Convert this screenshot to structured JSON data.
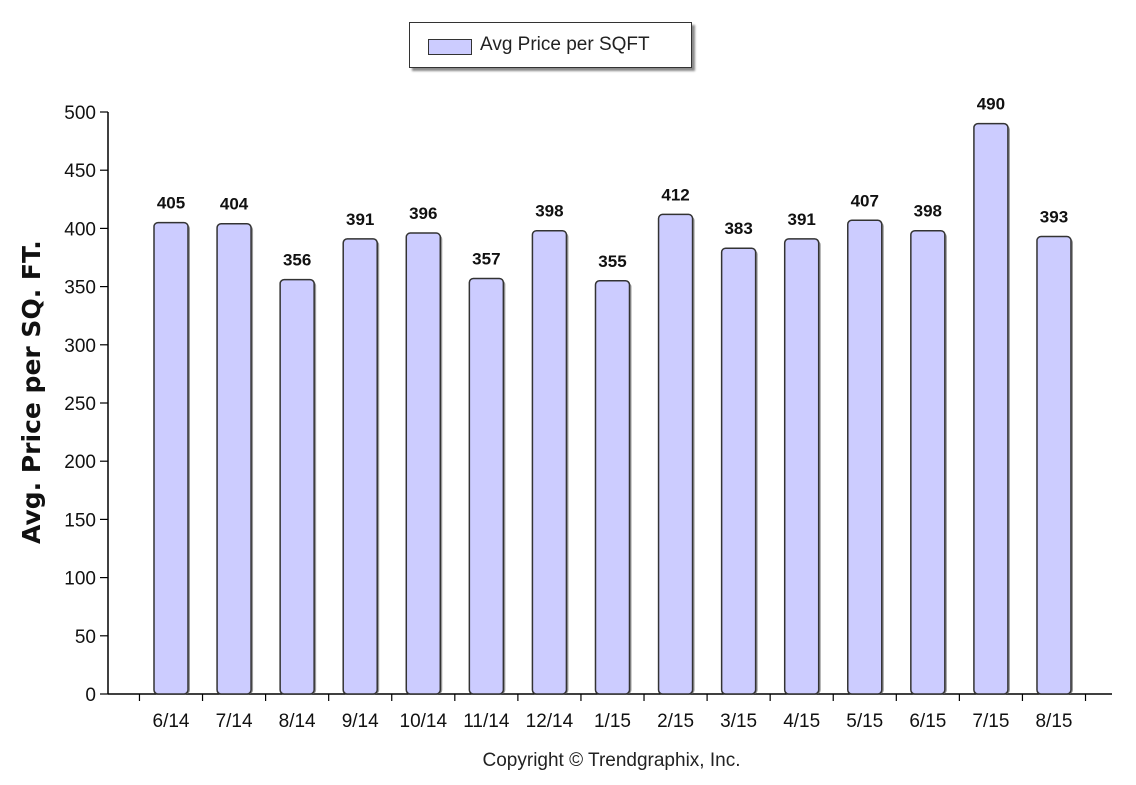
{
  "chart_data": {
    "type": "bar",
    "categories": [
      "6/14",
      "7/14",
      "8/14",
      "9/14",
      "10/14",
      "11/14",
      "12/14",
      "1/15",
      "2/15",
      "3/15",
      "4/15",
      "5/15",
      "6/15",
      "7/15",
      "8/15"
    ],
    "series": [
      {
        "name": "Avg Price per SQFT",
        "values": [
          405,
          404,
          356,
          391,
          396,
          357,
          398,
          355,
          412,
          383,
          391,
          407,
          398,
          490,
          393
        ]
      }
    ],
    "ylabel": "Avg. Price per SQ. FT.",
    "xlabel": "",
    "ylim": [
      0,
      500
    ],
    "yticks": [
      0,
      50,
      100,
      150,
      200,
      250,
      300,
      350,
      400,
      450,
      500
    ],
    "grid": false,
    "legend_position": "top-center",
    "data_labels": true,
    "colors": {
      "bar_fill": "#ccccff",
      "bar_stroke": "#333333"
    }
  },
  "footer": {
    "copyright": "Copyright © Trendgraphix, Inc."
  }
}
